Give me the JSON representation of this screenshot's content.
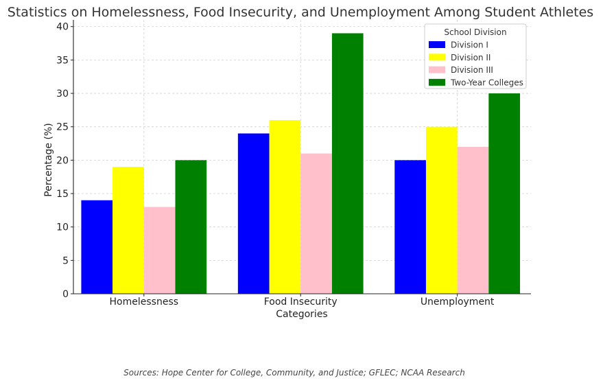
{
  "chart_data": {
    "type": "bar",
    "title": "Statistics on Homelessness, Food Insecurity, and Unemployment Among Student Athletes",
    "xlabel": "Categories",
    "ylabel": "Percentage (%)",
    "ylim": [
      0,
      41
    ],
    "yticks": [
      0,
      5,
      10,
      15,
      20,
      25,
      30,
      35,
      40
    ],
    "grid": true,
    "legend_title": "School Division",
    "legend_position": "top-right",
    "categories": [
      "Homelessness",
      "Food Insecurity",
      "Unemployment"
    ],
    "series": [
      {
        "name": "Division I",
        "color": "#0000ff",
        "values": [
          14,
          24,
          20
        ]
      },
      {
        "name": "Division II",
        "color": "#ffff00",
        "values": [
          19,
          26,
          25
        ]
      },
      {
        "name": "Division III",
        "color": "#ffc0cb",
        "values": [
          13,
          21,
          22
        ]
      },
      {
        "name": "Two-Year Colleges",
        "color": "#008000",
        "values": [
          20,
          39,
          30
        ]
      }
    ],
    "source": "Sources: Hope Center for College, Community, and Justice; GFLEC; NCAA Research"
  }
}
